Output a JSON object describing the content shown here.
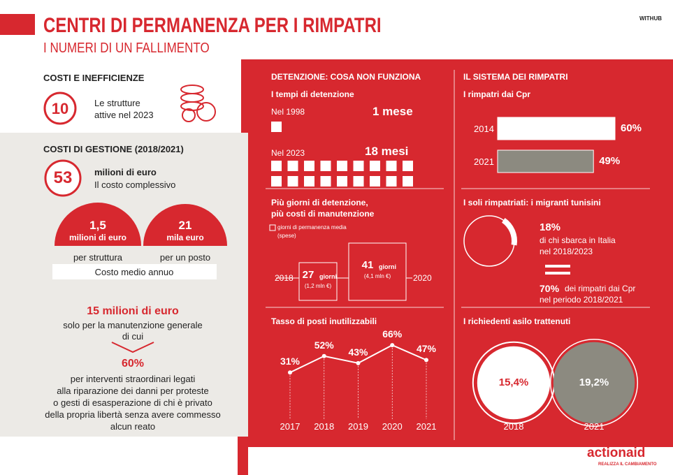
{
  "header": {
    "title": "CENTRI DI PERMANENZA PER I RIMPATRI",
    "subtitle": "I NUMERI DI UN FALLIMENTO",
    "brand": "WITHUB"
  },
  "costs": {
    "heading": "COSTI E INEFFICIENZE",
    "facilities": {
      "value": "10",
      "lines": [
        "Le strutture",
        "attive nel 2023"
      ]
    }
  },
  "management": {
    "heading": "COSTI DI GESTIONE (2018/2021)",
    "total": {
      "value": "53",
      "lines": [
        "milioni di euro",
        "Il costo complessivo"
      ]
    },
    "per_structure": {
      "value": "1,5",
      "unit": "milioni di euro",
      "caption": "per struttura"
    },
    "per_place": {
      "value": "21",
      "unit": "mila euro",
      "caption": "per un posto"
    },
    "note": "Costo medio annuo"
  },
  "maintenance": {
    "amount": "15 milioni di euro",
    "lines": [
      "solo per la manutenzione generale",
      "di cui"
    ],
    "share": "60%",
    "detail": [
      "per interventi straordinari legati",
      "alla riparazione dei danni per proteste",
      "o gesti di esasperazione  di chi è privato",
      "della propria libertà senza avere commesso",
      "alcun reato"
    ]
  },
  "detention": {
    "heading": "DETENZIONE: COSA NON FUNZIONA",
    "subheading": "I tempi di detenzione",
    "periods": [
      {
        "label": "Nel 1998",
        "months": 1,
        "value_label": "1 mese"
      },
      {
        "label": "Nel 2023",
        "months": 18,
        "value_label": "18 mesi"
      }
    ]
  },
  "maintenance_days": {
    "heading": [
      "Più giorni di detenzione,",
      "più costi di manutenzione"
    ],
    "legend": [
      "giorni di permanenza media",
      "(spese)"
    ],
    "items": [
      {
        "year": "2018",
        "days": 27,
        "unit": "giorni",
        "cost": "(1,2 mln €)"
      },
      {
        "year": "2020",
        "days": 41,
        "unit": "giorni",
        "cost": "(4,1 mln €)"
      }
    ]
  },
  "unused": {
    "type": "line",
    "heading": "Tasso di posti inutilizzabili",
    "x": [
      "2017",
      "2018",
      "2019",
      "2020",
      "2021"
    ],
    "values": [
      31,
      52,
      43,
      66,
      47
    ],
    "value_labels": [
      "31%",
      "52%",
      "43%",
      "66%",
      "47%"
    ]
  },
  "returns": {
    "heading": "IL SISTEMA DEI RIMPATRI",
    "subheading": "I rimpatri dai Cpr",
    "categories": [
      "2014",
      "2021"
    ],
    "values": [
      60,
      49
    ],
    "value_labels": [
      "60%",
      "49%"
    ],
    "colors": [
      "#ffffff",
      "#8c8a80"
    ]
  },
  "tunisians": {
    "heading": "I soli rimpatriati: i migranti tunisini",
    "share": 18,
    "share_label": "18%",
    "share_text": [
      "di chi sbarca in Italia",
      "nel 2018/2023"
    ],
    "equals_label": "70%",
    "equals_text": [
      "dei rimpatri dai Cpr",
      "nel periodo 2018/2021"
    ]
  },
  "asylum": {
    "heading": "I richiedenti asilo trattenuti",
    "categories": [
      "2018",
      "2021"
    ],
    "values": [
      15.4,
      19.2
    ],
    "value_labels": [
      "15,4%",
      "19,2%"
    ],
    "colors": [
      "#ffffff",
      "#8c8a80"
    ]
  },
  "logo": {
    "name": "actionaid",
    "tagline": "REALIZZA IL CAMBIAMENTO"
  }
}
